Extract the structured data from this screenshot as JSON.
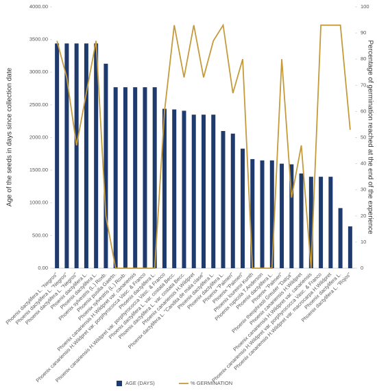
{
  "chart_data": {
    "type": "bar-line",
    "y_label": "Age of the seeds in days since collection date",
    "y2_label": "Percentage of germination reached at the end of the experience",
    "categories": [
      "Phoenix dactylifera L. \"Negros\"",
      "Phoenix dactylifera L. \"Negros\"",
      "Phoenix dactylifera L. \"Negros\"",
      "Phoenix dactylifera L.",
      "Phoenix dactylifera L.",
      "Phoenix sylvestris (L.) Roxb.",
      "Phoenix pusilla Gaertn.",
      "Phoenix sylvestris (L.) Roxb.",
      "Phoenix canariensis H.Wildpret var. canariensis",
      "Phoenix canariensis H.Wildpret var. porphyrococca Vasc. & Franco",
      "Phoenix dactylifera L.",
      "Phoenix canariensis H.Wildpret var. porphyrococca Vasc. & Franco",
      "Phoenix dactylifera L. var. costata Becc.",
      "Phoenix dactylifera L. var. costata Becc.",
      "Phoenix canariensis H.Wildpret",
      "Phoenix dactylifera L. \"Candita de mala clase\"",
      "Phoenix dactylifera L.",
      "Phoenix dactylifera L.",
      "Phoenix \"Palmeri\"",
      "Phoenix \"Palmeri\"",
      "Phoenix loureiroi Kunth",
      "Phoenix rupicola T.Anderson",
      "Phoenix dactylifera L.",
      "Phoenix \"Palmeri\"",
      "Phoenix theophrasti Greuter \"Datça\"",
      "Phoenix canariensis H.Wildpret",
      "Phoenix canariensis H.Wildpret var. canariensis",
      "Phoenix canariensis H.Wildpret var. porphyrococca Vasc. & Franco",
      "Phoenix canariensis H.Wildpret var. macrocarpa H.Wildpret",
      "Phoenix dactylifera L.",
      "Phoenix dactylifera L. \"Rojos\""
    ],
    "series": [
      {
        "name": "AGE (DAYS)",
        "color": "#1f3b6e",
        "type": "bar",
        "values": [
          3440,
          3440,
          3440,
          3440,
          3440,
          3130,
          2770,
          2770,
          2770,
          2770,
          2770,
          2440,
          2430,
          2410,
          2350,
          2350,
          2350,
          2100,
          2060,
          1830,
          1670,
          1650,
          1650,
          1600,
          1590,
          1450,
          1400,
          1400,
          1400,
          920,
          640
        ]
      },
      {
        "name": "% GERMINATION",
        "color": "#c49a3a",
        "type": "line",
        "axis": "y2",
        "values": [
          87,
          73,
          47,
          67,
          87,
          20,
          0,
          0,
          0,
          0,
          0,
          60,
          93,
          73,
          93,
          73,
          87,
          93,
          67,
          80,
          0,
          0,
          0,
          80,
          27,
          47,
          0,
          93,
          93,
          93,
          53
        ]
      }
    ],
    "ylim": [
      0,
      4000
    ],
    "yticks": [
      {
        "value": 0,
        "label": "0.00"
      },
      {
        "value": 500,
        "label": "500.00"
      },
      {
        "value": 1000,
        "label": "1000.00"
      },
      {
        "value": 1500,
        "label": "1500.00"
      },
      {
        "value": 2000,
        "label": "2000.00"
      },
      {
        "value": 2500,
        "label": "2500.00"
      },
      {
        "value": 3000,
        "label": "3000.00"
      },
      {
        "value": 3500,
        "label": "3500.00"
      },
      {
        "value": 4000,
        "label": "4000.00"
      }
    ],
    "y2lim": [
      0,
      100
    ],
    "y2ticks": [
      0,
      10,
      20,
      30,
      40,
      50,
      60,
      70,
      80,
      90,
      100
    ]
  }
}
